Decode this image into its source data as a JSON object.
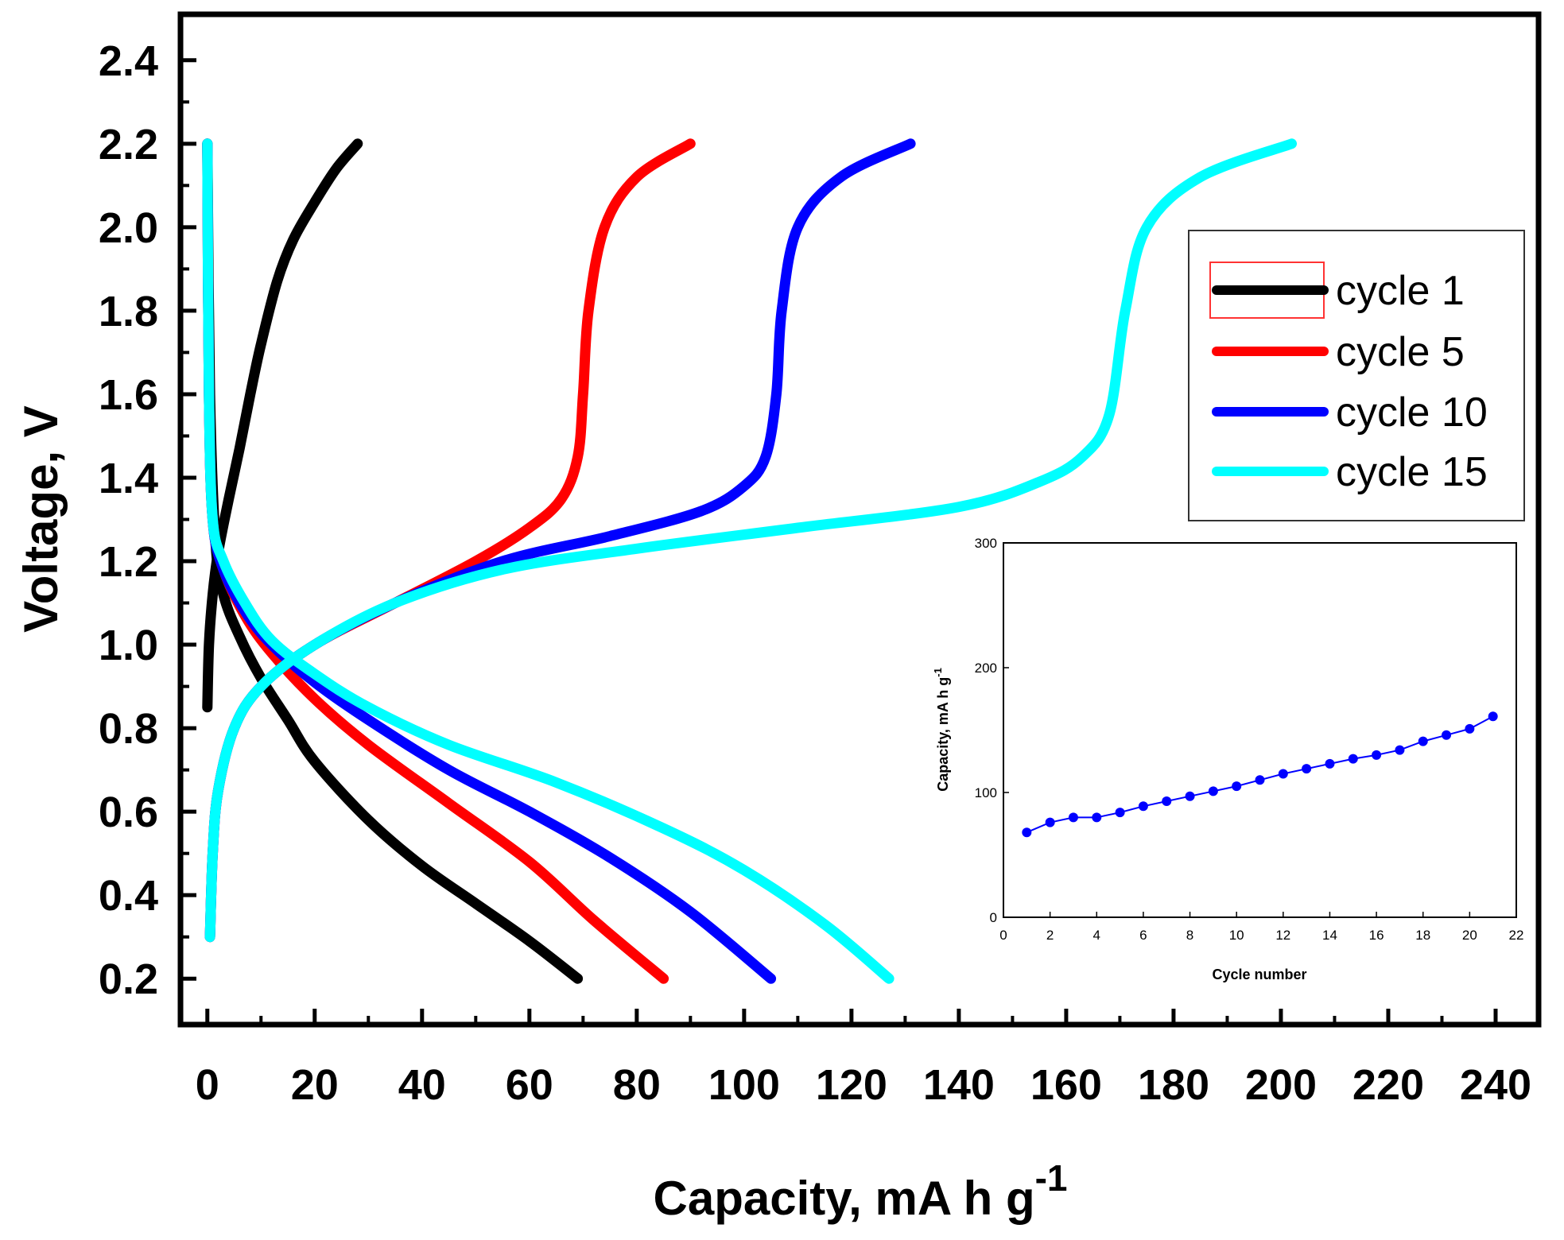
{
  "chart_data": [
    {
      "type": "line",
      "xlabel": "Capacity, mA h g",
      "xlabel_superscript": "-1",
      "ylabel": "Voltage, V",
      "xlim": [
        -5,
        248
      ],
      "ylim": [
        0.09,
        2.51
      ],
      "xticks": [
        0,
        20,
        40,
        60,
        80,
        100,
        120,
        140,
        160,
        180,
        200,
        220,
        240
      ],
      "yticks": [
        "0.2",
        "0.4",
        "0.6",
        "0.8",
        "1.0",
        "1.2",
        "1.4",
        "1.6",
        "1.8",
        "2.0",
        "2.2",
        "2.4"
      ],
      "legend_position": "top-right",
      "series": [
        {
          "name": "cycle 1",
          "color": "#000000",
          "charge": [
            [
              0,
              0.85
            ],
            [
              0.3,
              1.0
            ],
            [
              1,
              1.12
            ],
            [
              2,
              1.22
            ],
            [
              4,
              1.35
            ],
            [
              6,
              1.47
            ],
            [
              8,
              1.6
            ],
            [
              10,
              1.72
            ],
            [
              13,
              1.87
            ],
            [
              16,
              1.97
            ],
            [
              20,
              2.06
            ],
            [
              24,
              2.14
            ],
            [
              28,
              2.2
            ]
          ],
          "discharge": [
            [
              0,
              2.2
            ],
            [
              0.5,
              1.6
            ],
            [
              1.5,
              1.25
            ],
            [
              3,
              1.12
            ],
            [
              6,
              1.02
            ],
            [
              10,
              0.92
            ],
            [
              15,
              0.82
            ],
            [
              20,
              0.72
            ],
            [
              30,
              0.58
            ],
            [
              40,
              0.47
            ],
            [
              50,
              0.38
            ],
            [
              60,
              0.29
            ],
            [
              69,
              0.2
            ]
          ]
        },
        {
          "name": "cycle 5",
          "color": "#ff0000",
          "charge": [
            [
              0.5,
              0.3
            ],
            [
              1,
              0.5
            ],
            [
              2,
              0.65
            ],
            [
              5,
              0.8
            ],
            [
              10,
              0.9
            ],
            [
              20,
              1.0
            ],
            [
              35,
              1.1
            ],
            [
              50,
              1.2
            ],
            [
              60,
              1.28
            ],
            [
              66,
              1.35
            ],
            [
              69,
              1.45
            ],
            [
              70,
              1.6
            ],
            [
              71,
              1.8
            ],
            [
              74,
              2.0
            ],
            [
              80,
              2.12
            ],
            [
              90,
              2.2
            ]
          ],
          "discharge": [
            [
              0,
              2.2
            ],
            [
              0.3,
              1.6
            ],
            [
              1,
              1.3
            ],
            [
              3,
              1.18
            ],
            [
              7,
              1.07
            ],
            [
              12,
              0.98
            ],
            [
              20,
              0.87
            ],
            [
              30,
              0.76
            ],
            [
              45,
              0.62
            ],
            [
              60,
              0.48
            ],
            [
              72,
              0.34
            ],
            [
              85,
              0.2
            ]
          ]
        },
        {
          "name": "cycle 10",
          "color": "#0000ff",
          "charge": [
            [
              0.5,
              0.3
            ],
            [
              1,
              0.5
            ],
            [
              2,
              0.65
            ],
            [
              5,
              0.8
            ],
            [
              10,
              0.9
            ],
            [
              20,
              1.0
            ],
            [
              35,
              1.1
            ],
            [
              55,
              1.2
            ],
            [
              75,
              1.26
            ],
            [
              92,
              1.32
            ],
            [
              100,
              1.38
            ],
            [
              104,
              1.45
            ],
            [
              106,
              1.6
            ],
            [
              107,
              1.8
            ],
            [
              110,
              2.0
            ],
            [
              118,
              2.12
            ],
            [
              131,
              2.2
            ]
          ],
          "discharge": [
            [
              0,
              2.2
            ],
            [
              0.3,
              1.6
            ],
            [
              1,
              1.3
            ],
            [
              3,
              1.18
            ],
            [
              7,
              1.08
            ],
            [
              12,
              1.0
            ],
            [
              20,
              0.91
            ],
            [
              30,
              0.82
            ],
            [
              45,
              0.7
            ],
            [
              60,
              0.6
            ],
            [
              75,
              0.49
            ],
            [
              90,
              0.36
            ],
            [
              105,
              0.2
            ]
          ]
        },
        {
          "name": "cycle 15",
          "color": "#00ffff",
          "charge": [
            [
              0.5,
              0.3
            ],
            [
              1,
              0.5
            ],
            [
              2,
              0.65
            ],
            [
              5,
              0.8
            ],
            [
              10,
              0.9
            ],
            [
              20,
              1.0
            ],
            [
              35,
              1.1
            ],
            [
              55,
              1.18
            ],
            [
              80,
              1.23
            ],
            [
              110,
              1.28
            ],
            [
              140,
              1.33
            ],
            [
              155,
              1.39
            ],
            [
              163,
              1.45
            ],
            [
              168,
              1.55
            ],
            [
              171,
              1.8
            ],
            [
              175,
              2.0
            ],
            [
              185,
              2.12
            ],
            [
              202,
              2.2
            ]
          ],
          "discharge": [
            [
              0,
              2.2
            ],
            [
              0.3,
              1.6
            ],
            [
              1,
              1.3
            ],
            [
              3,
              1.2
            ],
            [
              7,
              1.1
            ],
            [
              12,
              1.01
            ],
            [
              20,
              0.93
            ],
            [
              30,
              0.85
            ],
            [
              45,
              0.76
            ],
            [
              65,
              0.67
            ],
            [
              85,
              0.56
            ],
            [
              100,
              0.46
            ],
            [
              115,
              0.33
            ],
            [
              127,
              0.2
            ]
          ]
        }
      ]
    },
    {
      "type": "scatter",
      "inset": true,
      "xlabel": "Cycle number",
      "ylabel": "Capacity, mA h g",
      "ylabel_superscript": "-1",
      "xlim": [
        0,
        22
      ],
      "ylim": [
        0,
        300
      ],
      "xticks": [
        0,
        2,
        4,
        6,
        8,
        10,
        12,
        14,
        16,
        18,
        20,
        22
      ],
      "yticks": [
        0,
        100,
        200,
        300
      ],
      "color": "#0000ff",
      "x": [
        1,
        2,
        3,
        4,
        5,
        6,
        7,
        8,
        9,
        10,
        11,
        12,
        13,
        14,
        15,
        16,
        17,
        18,
        19,
        20,
        21
      ],
      "values": [
        68,
        76,
        80,
        80,
        84,
        89,
        93,
        97,
        101,
        105,
        110,
        115,
        119,
        123,
        127,
        130,
        134,
        141,
        146,
        151,
        161
      ]
    }
  ]
}
